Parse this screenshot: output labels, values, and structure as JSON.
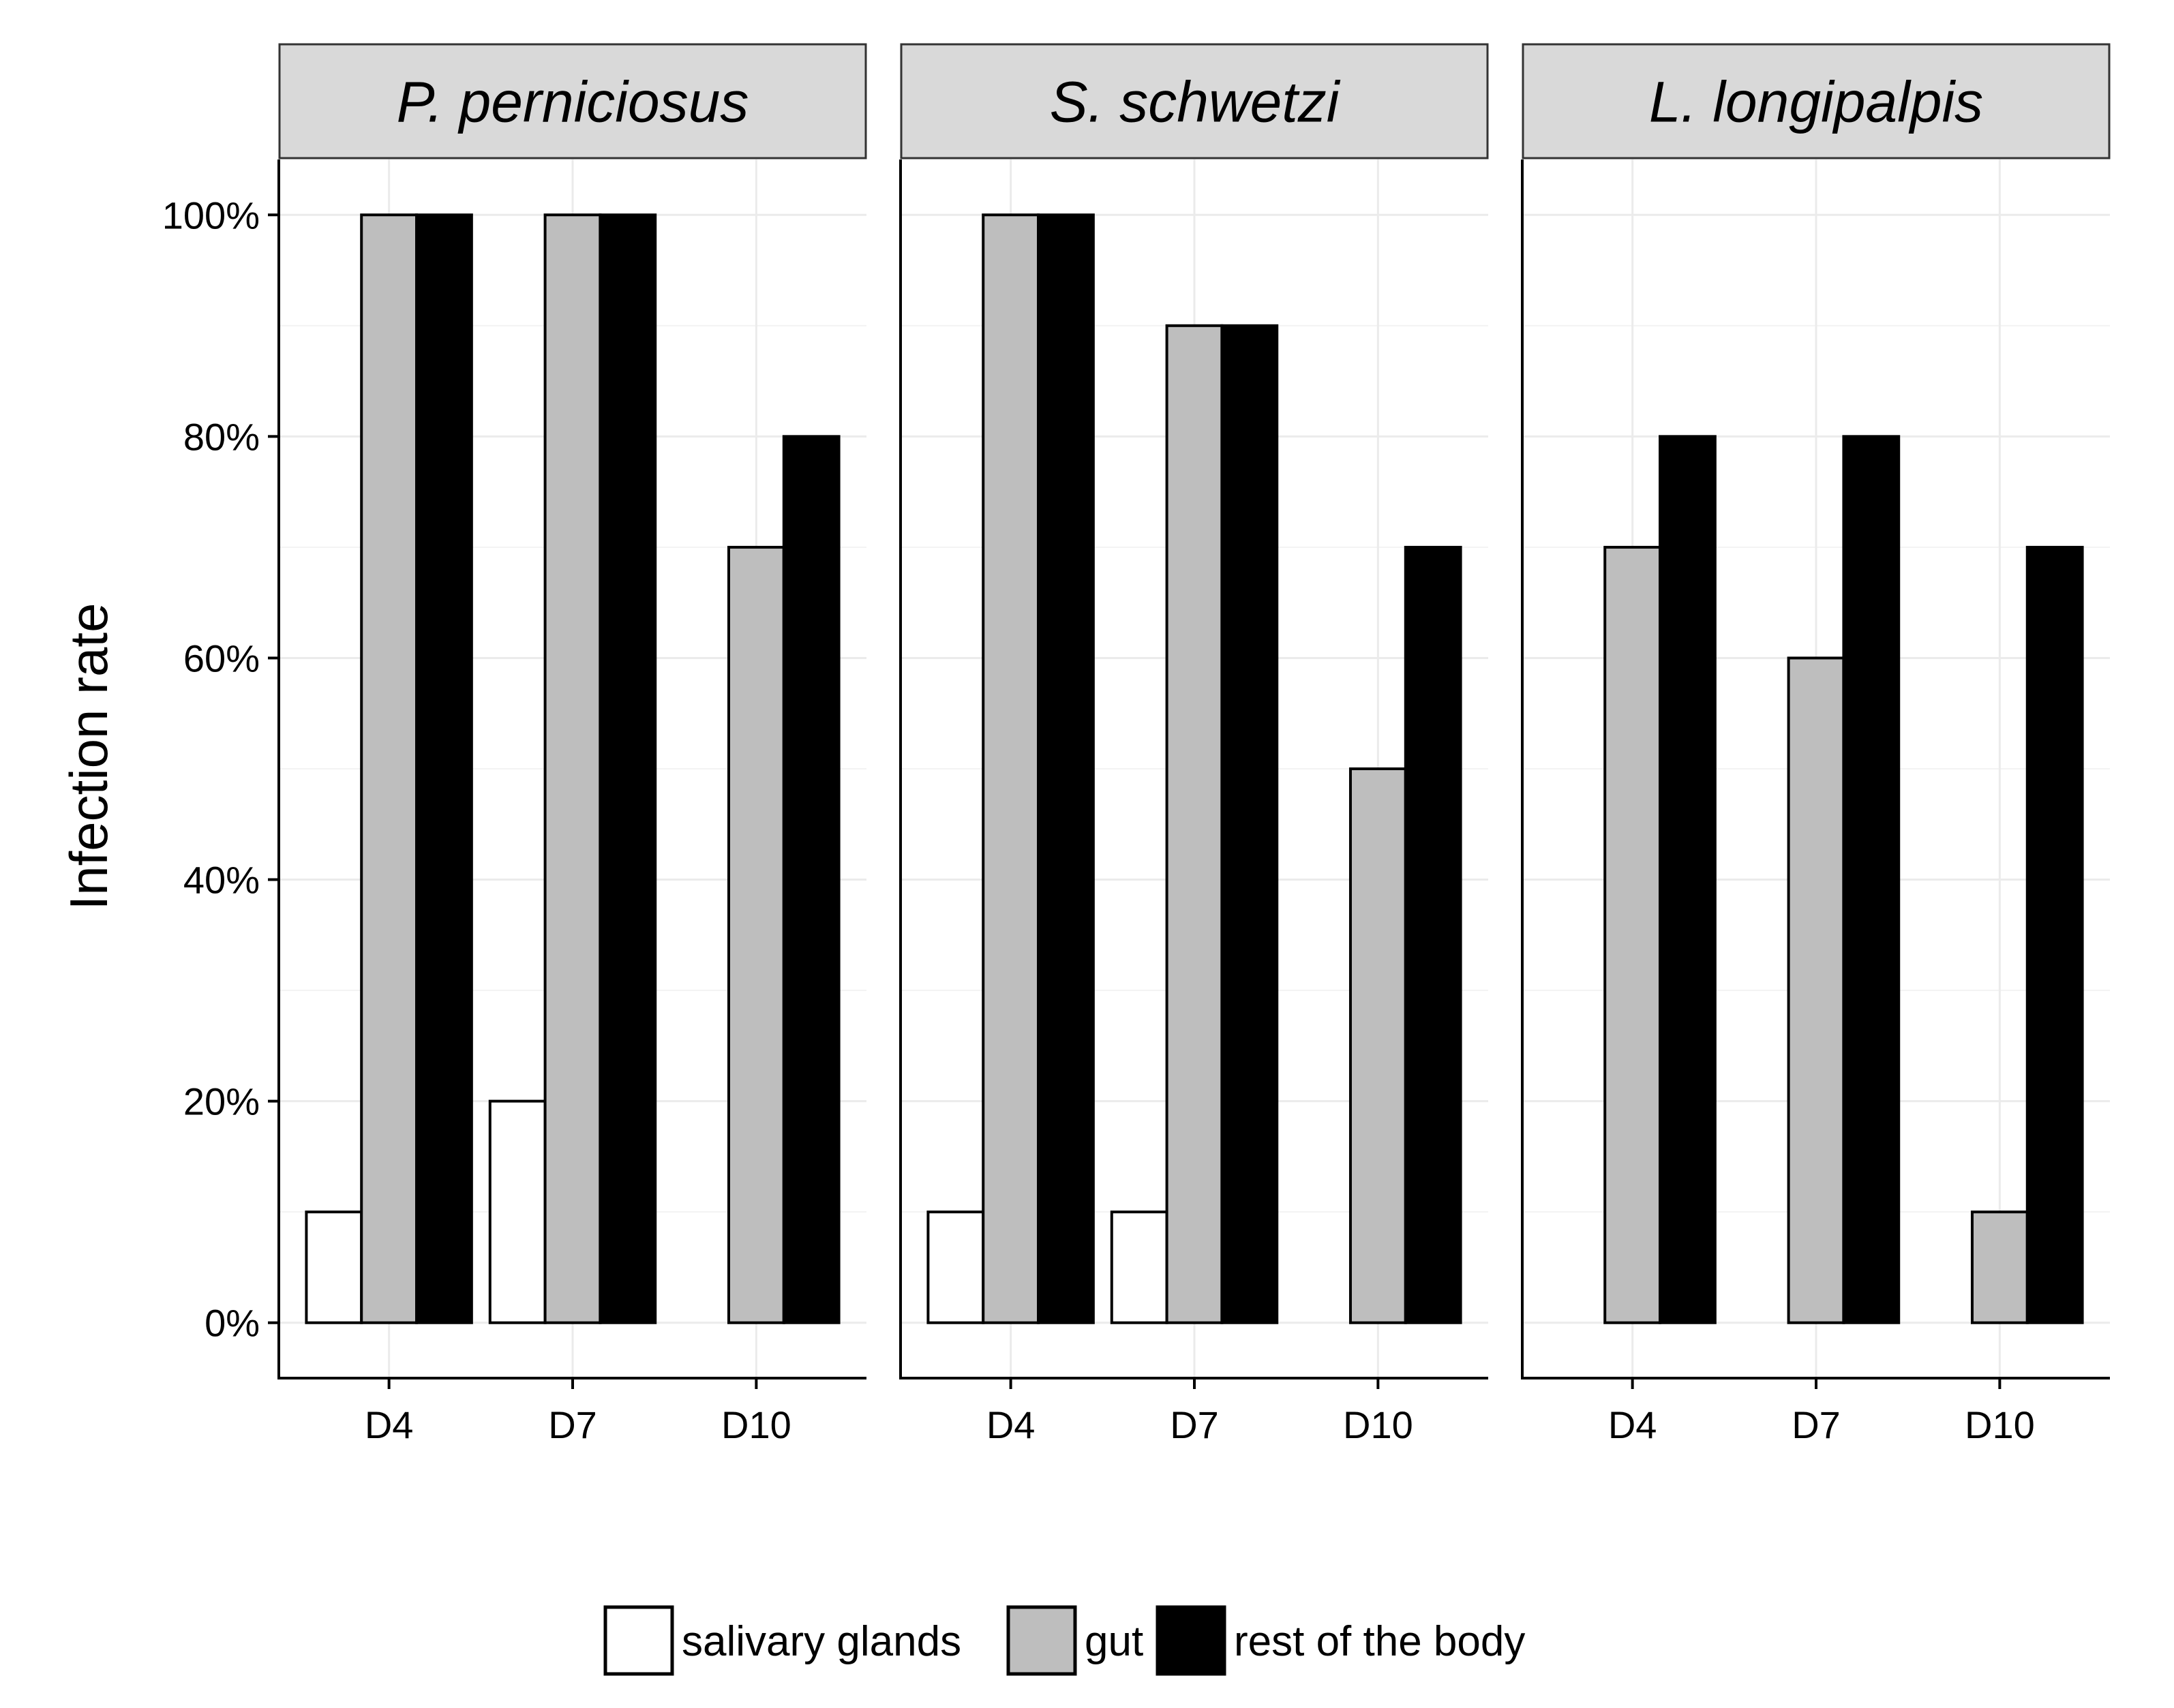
{
  "chart_data": {
    "type": "bar",
    "facets": [
      "P. perniciosus",
      "S. schwetzi",
      "L. longipalpis"
    ],
    "categories": [
      "D4",
      "D7",
      "D10"
    ],
    "ylabel": "Infection rate",
    "xlabel": "",
    "ylim": [
      -0.05,
      1.05
    ],
    "y_ticks": [
      0,
      0.2,
      0.4,
      0.6,
      0.8,
      1.0
    ],
    "y_tick_labels": [
      "0%",
      "20%",
      "40%",
      "60%",
      "80%",
      "100%"
    ],
    "grid": true,
    "legend_position": "bottom",
    "series": [
      {
        "name": "salivary glands",
        "color": "#ffffff",
        "values": [
          [
            0.1,
            0.2,
            0.0
          ],
          [
            0.1,
            0.1,
            0.0
          ],
          [
            0.0,
            0.0,
            0.0
          ]
        ]
      },
      {
        "name": "gut",
        "color": "#bebebe",
        "values": [
          [
            1.0,
            1.0,
            0.7
          ],
          [
            1.0,
            0.9,
            0.5
          ],
          [
            0.7,
            0.6,
            0.1
          ]
        ]
      },
      {
        "name": "rest of the body",
        "color": "#000000",
        "values": [
          [
            1.0,
            1.0,
            0.8
          ],
          [
            1.0,
            0.9,
            0.7
          ],
          [
            0.8,
            0.8,
            0.7
          ]
        ]
      }
    ]
  }
}
